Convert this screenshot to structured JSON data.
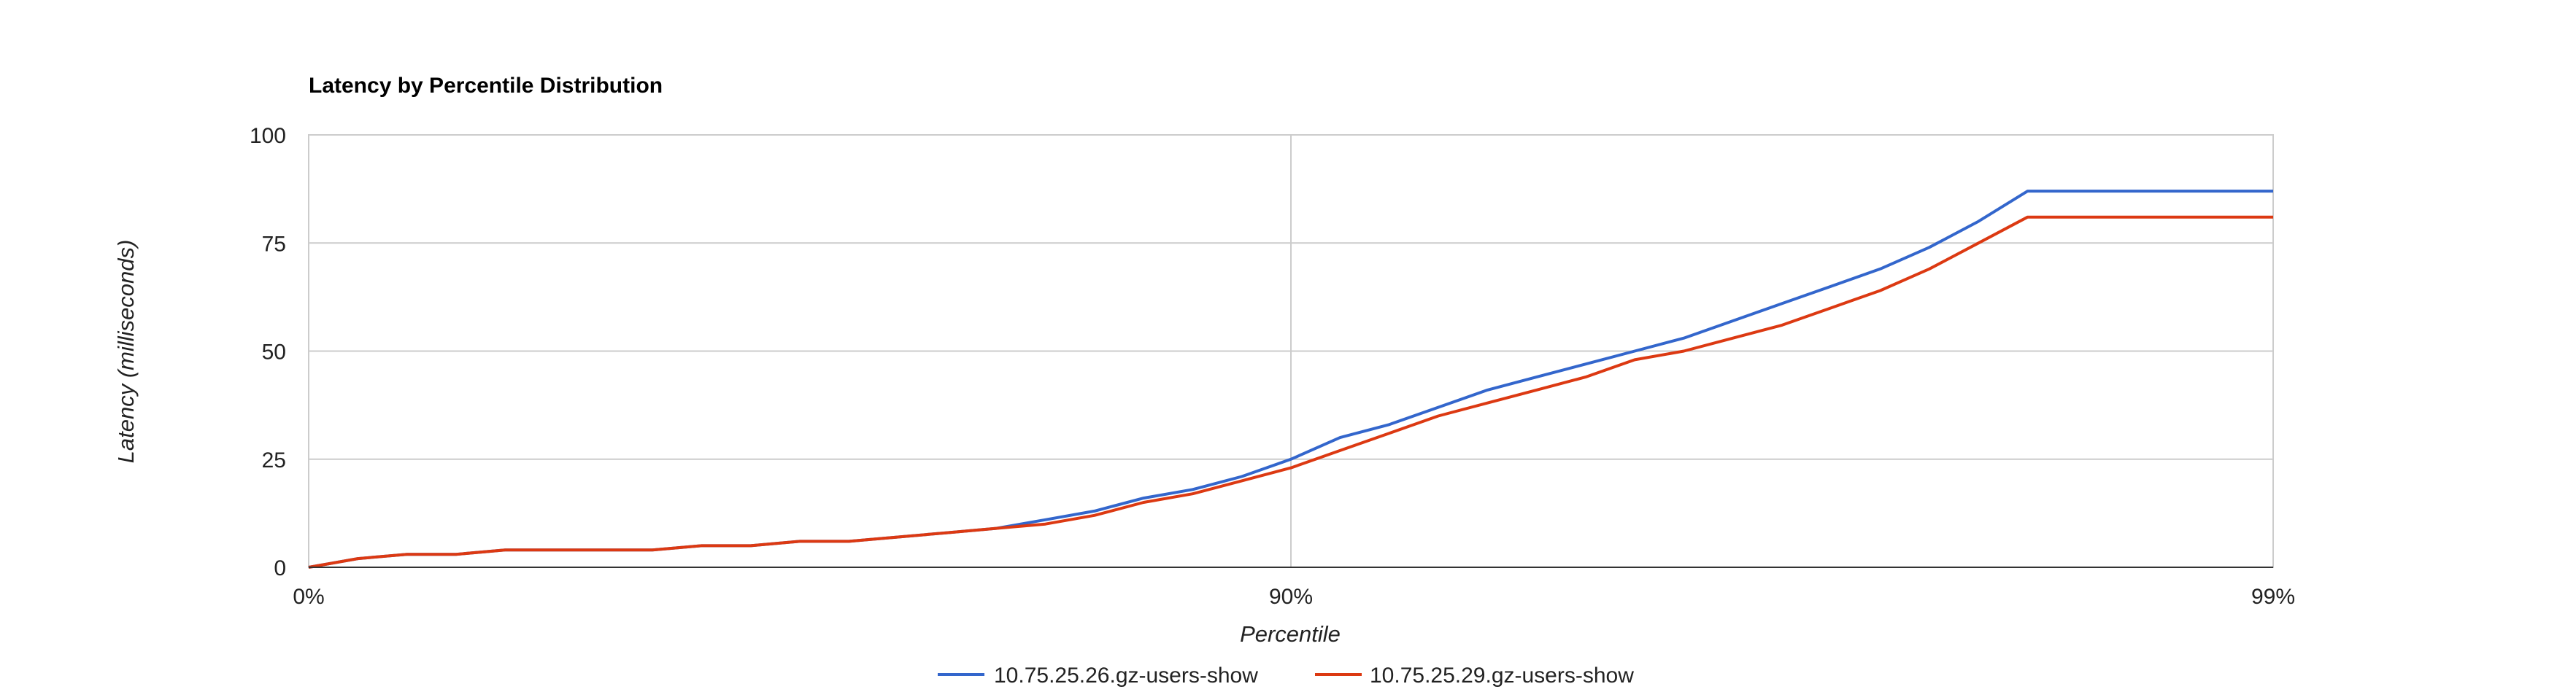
{
  "chart_data": {
    "type": "line",
    "title": "Latency by Percentile Distribution",
    "xlabel": "Percentile",
    "ylabel": "Latency (milliseconds)",
    "x_tick_labels": [
      "0%",
      "90%",
      "99%"
    ],
    "y_ticks": [
      0,
      25,
      50,
      75,
      100
    ],
    "y_tick_labels": [
      "0",
      "25",
      "50",
      "75",
      "100"
    ],
    "ylim": [
      0,
      100
    ],
    "legend_position": "bottom",
    "grid": true,
    "x": [
      0,
      0.05,
      0.1,
      0.15,
      0.2,
      0.25,
      0.3,
      0.35,
      0.4,
      0.45,
      0.5,
      0.55,
      0.6,
      0.65,
      0.7,
      0.75,
      0.8,
      0.85,
      0.9,
      0.95,
      1.0,
      1.05,
      1.1,
      1.15,
      1.2,
      1.25,
      1.3,
      1.35,
      1.4,
      1.45,
      1.5,
      1.55,
      1.6,
      1.65,
      1.7,
      1.75,
      1.8,
      1.85,
      1.9,
      1.95,
      2.0
    ],
    "series": [
      {
        "name": "10.75.25.26.gz-users-show",
        "color": "#3366cc",
        "values": [
          0,
          2,
          3,
          3,
          4,
          4,
          4,
          4,
          5,
          5,
          6,
          6,
          7,
          8,
          9,
          11,
          13,
          16,
          18,
          21,
          25,
          30,
          33,
          37,
          41,
          44,
          47,
          50,
          53,
          57,
          61,
          65,
          69,
          74,
          80,
          87,
          87,
          87,
          87,
          87,
          87
        ]
      },
      {
        "name": "10.75.25.29.gz-users-show",
        "color": "#dc3912",
        "values": [
          0,
          2,
          3,
          3,
          4,
          4,
          4,
          4,
          5,
          5,
          6,
          6,
          7,
          8,
          9,
          10,
          12,
          15,
          17,
          20,
          23,
          27,
          31,
          35,
          38,
          41,
          44,
          48,
          50,
          53,
          56,
          60,
          64,
          69,
          75,
          81,
          81,
          81,
          81,
          81,
          81
        ]
      }
    ]
  }
}
